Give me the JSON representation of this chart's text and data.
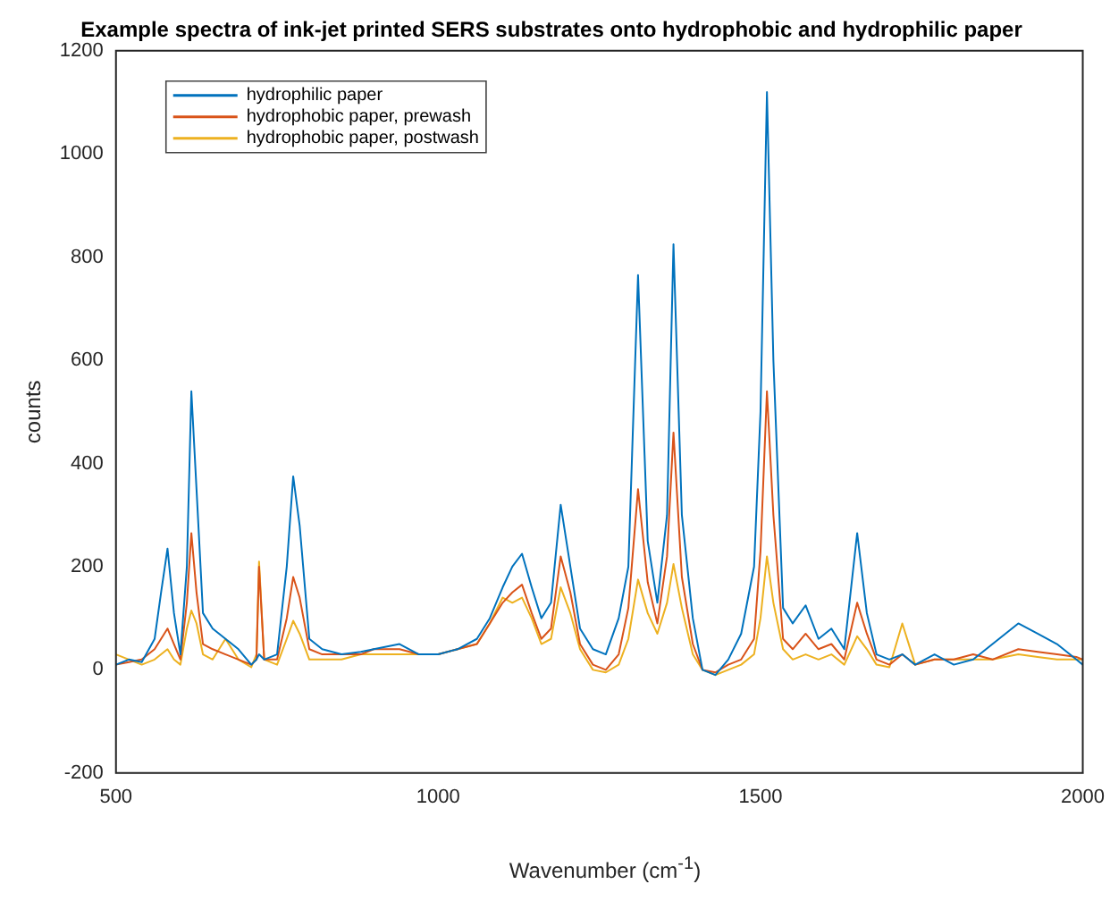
{
  "chart_data": {
    "type": "line",
    "title": "Example spectra of ink-jet printed SERS substrates onto hydrophobic and hydrophilic paper",
    "xlabel": "Wavenumber (cm$^{-1}$)",
    "ylabel": "counts",
    "x": [
      500,
      520,
      540,
      560,
      570,
      580,
      590,
      600,
      610,
      617,
      625,
      635,
      650,
      670,
      690,
      710,
      718,
      722,
      730,
      750,
      765,
      775,
      785,
      800,
      820,
      850,
      880,
      900,
      940,
      970,
      1000,
      1030,
      1060,
      1080,
      1100,
      1115,
      1130,
      1145,
      1160,
      1175,
      1190,
      1205,
      1220,
      1240,
      1260,
      1280,
      1295,
      1310,
      1325,
      1340,
      1355,
      1365,
      1378,
      1395,
      1410,
      1430,
      1450,
      1470,
      1490,
      1500,
      1510,
      1520,
      1535,
      1550,
      1570,
      1590,
      1610,
      1630,
      1650,
      1665,
      1680,
      1700,
      1720,
      1740,
      1770,
      1800,
      1830,
      1860,
      1900,
      1930,
      1960,
      1990,
      2000
    ],
    "series": [
      {
        "name": "hydrophilic paper",
        "color": "#0072bd",
        "values": [
          10,
          20,
          15,
          60,
          150,
          235,
          110,
          30,
          200,
          540,
          350,
          110,
          80,
          60,
          40,
          10,
          20,
          30,
          20,
          30,
          200,
          375,
          280,
          60,
          40,
          30,
          35,
          40,
          50,
          30,
          30,
          40,
          60,
          100,
          160,
          200,
          225,
          160,
          100,
          130,
          320,
          200,
          80,
          40,
          30,
          100,
          200,
          765,
          250,
          130,
          300,
          825,
          300,
          100,
          0,
          -10,
          20,
          70,
          200,
          500,
          1120,
          600,
          120,
          90,
          125,
          60,
          80,
          40,
          265,
          110,
          30,
          20,
          30,
          10,
          30,
          10,
          20,
          50,
          90,
          70,
          50,
          20,
          10
        ]
      },
      {
        "name": "hydrophobic paper, prewash",
        "color": "#d95319",
        "values": [
          10,
          15,
          20,
          40,
          60,
          80,
          50,
          20,
          130,
          265,
          150,
          50,
          40,
          30,
          20,
          10,
          20,
          200,
          20,
          20,
          100,
          180,
          140,
          40,
          30,
          30,
          30,
          40,
          40,
          30,
          30,
          40,
          50,
          90,
          130,
          150,
          165,
          110,
          60,
          80,
          220,
          150,
          50,
          10,
          0,
          30,
          120,
          350,
          170,
          90,
          220,
          460,
          180,
          50,
          0,
          -5,
          10,
          20,
          60,
          230,
          540,
          300,
          60,
          40,
          70,
          40,
          50,
          20,
          130,
          70,
          20,
          10,
          30,
          10,
          20,
          20,
          30,
          20,
          40,
          35,
          30,
          25,
          20
        ]
      },
      {
        "name": "hydrophobic paper, postwash",
        "color": "#edb120",
        "values": [
          30,
          20,
          10,
          20,
          30,
          40,
          20,
          10,
          80,
          115,
          90,
          30,
          20,
          60,
          20,
          5,
          30,
          210,
          20,
          10,
          60,
          95,
          70,
          20,
          20,
          20,
          30,
          30,
          30,
          30,
          30,
          40,
          50,
          90,
          140,
          130,
          140,
          100,
          50,
          60,
          160,
          110,
          40,
          0,
          -5,
          10,
          60,
          175,
          110,
          70,
          130,
          205,
          120,
          30,
          0,
          -10,
          0,
          10,
          30,
          100,
          220,
          130,
          40,
          20,
          30,
          20,
          30,
          10,
          65,
          40,
          10,
          5,
          90,
          10,
          20,
          20,
          20,
          20,
          30,
          25,
          20,
          20,
          20
        ]
      }
    ],
    "xlim": [
      500,
      2000
    ],
    "xticks": [
      500,
      1000,
      1500,
      2000
    ],
    "ylim": [
      -200,
      1200
    ],
    "yticks": [
      -200,
      0,
      200,
      400,
      600,
      800,
      1000,
      1200
    ],
    "grid": false,
    "legend": "top left",
    "marker": "none",
    "line_style": "solid"
  }
}
